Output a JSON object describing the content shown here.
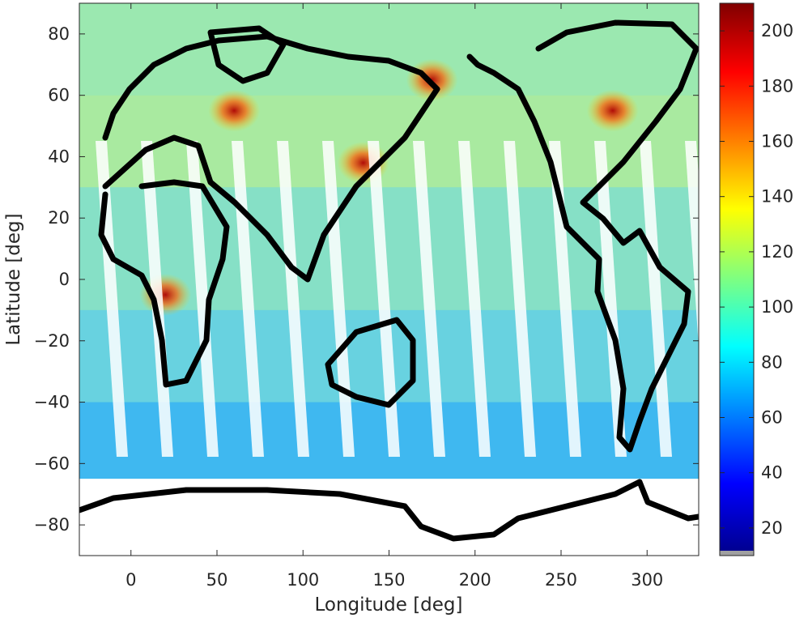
{
  "chart_data": {
    "type": "heatmap",
    "title": "",
    "xlabel": "Longitude [deg]",
    "ylabel": "Latitude [deg]",
    "xlim": [
      -30,
      330
    ],
    "ylim": [
      -90,
      90
    ],
    "xticks": [
      0,
      50,
      100,
      150,
      200,
      250,
      300
    ],
    "yticks": [
      -80,
      -60,
      -40,
      -20,
      0,
      20,
      40,
      60,
      80
    ],
    "xtick_labels": [
      "0",
      "50",
      "100",
      "150",
      "200",
      "250",
      "300"
    ],
    "ytick_labels": [
      "−80",
      "−60",
      "−40",
      "−20",
      "0",
      "20",
      "40",
      "60",
      "80"
    ],
    "colorbar": {
      "colormap": "jet",
      "clim": [
        10,
        210
      ],
      "ticks": [
        20,
        40,
        60,
        80,
        100,
        120,
        140,
        160,
        180,
        200
      ],
      "tick_labels": [
        "20",
        "40",
        "60",
        "80",
        "100",
        "120",
        "140",
        "160",
        "180",
        "200"
      ]
    },
    "grid": false,
    "hotspots": [
      {
        "lon": 60,
        "lat": 55,
        "value": 180
      },
      {
        "lon": 20,
        "lat": -5,
        "value": 190
      },
      {
        "lon": 280,
        "lat": 55,
        "value": 165
      },
      {
        "lon": 135,
        "lat": 38,
        "value": 150
      },
      {
        "lon": 175,
        "lat": 65,
        "value": 160
      }
    ],
    "background_value": 75
  }
}
